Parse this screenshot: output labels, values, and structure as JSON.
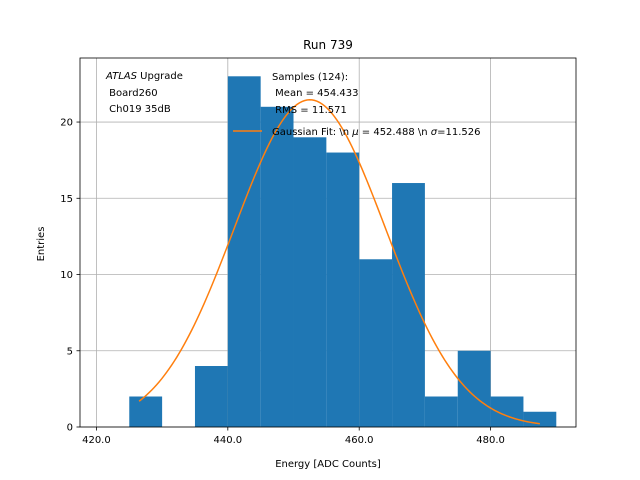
{
  "chart_data": {
    "type": "histogram",
    "title": "Run 739",
    "xlabel": "Energy [ADC Counts]",
    "ylabel": "Entries",
    "xlim": [
      417.5,
      493.0
    ],
    "ylim": [
      0,
      24.2
    ],
    "grid": true,
    "xticks": [
      420.0,
      440.0,
      460.0,
      480.0
    ],
    "xtick_labels": [
      "420.0",
      "440.0",
      "460.0",
      "480.0"
    ],
    "yticks": [
      0,
      5,
      10,
      15,
      20
    ],
    "ytick_labels": [
      "0",
      "5",
      "10",
      "15",
      "20"
    ],
    "bin_edges": [
      425,
      430,
      435,
      440,
      445,
      450,
      455,
      460,
      465,
      470,
      475,
      480,
      485,
      490
    ],
    "counts": [
      2,
      0,
      4,
      23,
      21,
      19,
      18,
      11,
      16,
      2,
      5,
      2,
      1
    ],
    "bar_color": "#1f77b4",
    "fit": {
      "name": "Gaussian Fit",
      "mu": 452.488,
      "sigma": 11.526,
      "x_range": [
        426.5,
        487.5
      ],
      "color": "#ff7f0e"
    },
    "annotation": {
      "line1_italic": "ATLAS",
      "line1_rest": " Upgrade",
      "line2": " Board260",
      "line3": " Ch019 35dB"
    },
    "legend": {
      "position": "top-right",
      "samples_header": "Samples (124):",
      "samples_mean": " Mean = 454.433",
      "samples_rms": " RMS = 11.571",
      "fit_prefix": "Gaussian Fit: \\n ",
      "fit_mu_symbol": "μ",
      "fit_mu_value": " = 452.488 \\n ",
      "fit_sigma_symbol": "σ",
      "fit_sigma_value": "=11.526"
    }
  }
}
